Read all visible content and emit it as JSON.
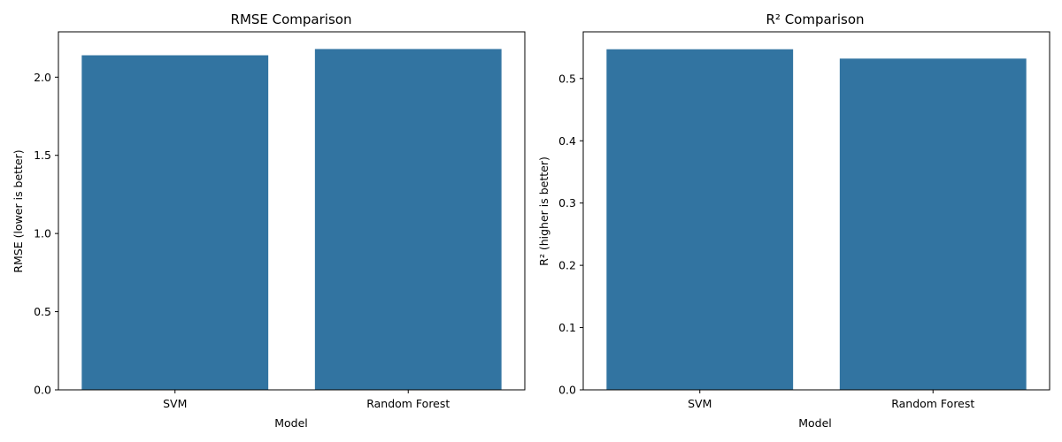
{
  "colors": {
    "bar": "#3274a1",
    "axis": "#000000",
    "background": "#ffffff"
  },
  "chart_data": [
    {
      "type": "bar",
      "title": "RMSE Comparison",
      "xlabel": "Model",
      "ylabel": "RMSE (lower is better)",
      "categories": [
        "SVM",
        "Random Forest"
      ],
      "values": [
        2.14,
        2.18
      ],
      "ylim": [
        0,
        2.29
      ],
      "yticks": [
        0.0,
        0.5,
        1.0,
        1.5,
        2.0
      ],
      "ytick_labels": [
        "0.0",
        "0.5",
        "1.0",
        "1.5",
        "2.0"
      ],
      "grid": false,
      "legend": "none"
    },
    {
      "type": "bar",
      "title": "R² Comparison",
      "xlabel": "Model",
      "ylabel": "R² (higher is better)",
      "categories": [
        "SVM",
        "Random Forest"
      ],
      "values": [
        0.547,
        0.532
      ],
      "ylim": [
        0,
        0.575
      ],
      "yticks": [
        0.0,
        0.1,
        0.2,
        0.3,
        0.4,
        0.5
      ],
      "ytick_labels": [
        "0.0",
        "0.1",
        "0.2",
        "0.3",
        "0.4",
        "0.5"
      ],
      "grid": false,
      "legend": "none"
    }
  ]
}
